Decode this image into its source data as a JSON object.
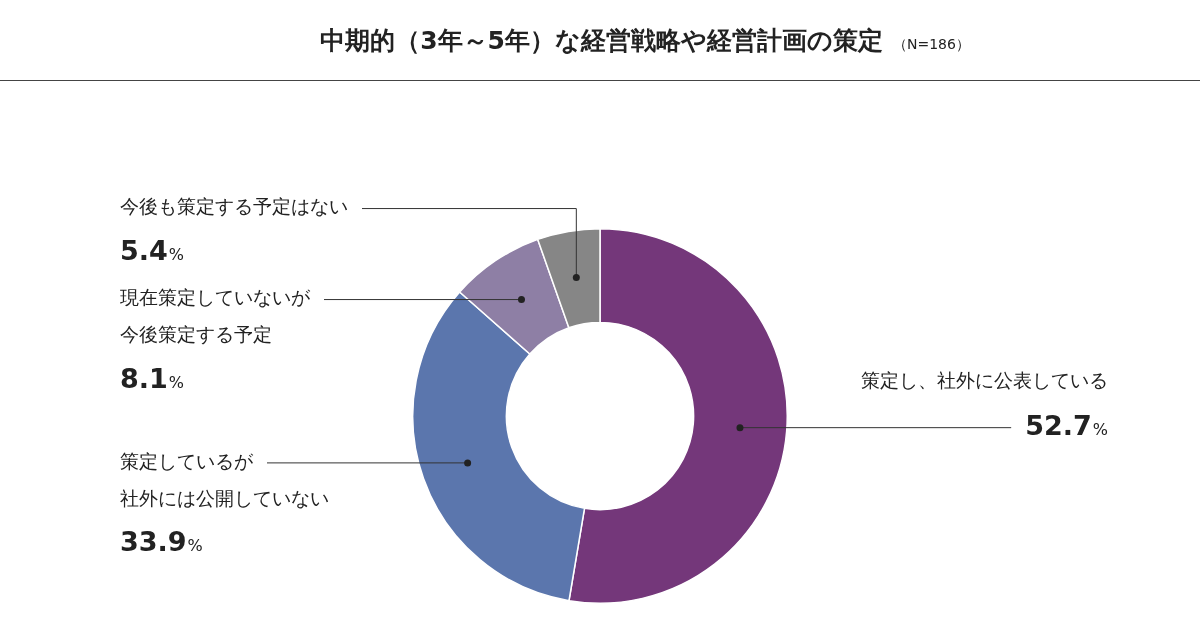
{
  "chart_data": {
    "type": "donut",
    "title": "中期的（3年～5年）な経営戦略や経営計画の策定",
    "subtitle": "（N=186）",
    "categories": [
      "策定し、社外に公表している",
      "策定しているが社外には公開していない",
      "現在策定していないが今後策定する予定",
      "今後も策定する予定はない"
    ],
    "values": [
      52.7,
      33.9,
      8.1,
      5.4
    ],
    "colors": [
      "#74377a",
      "#5b76ad",
      "#8e7fa5",
      "#868686"
    ],
    "value_labels": [
      "52.7%",
      "33.9%",
      "8.1%",
      "5.4%"
    ]
  }
}
